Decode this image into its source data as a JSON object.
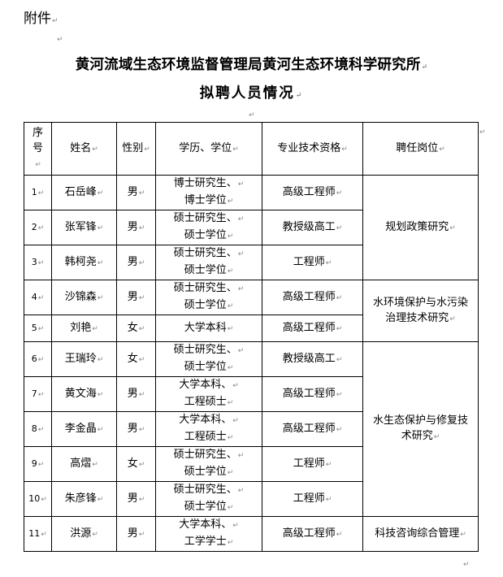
{
  "attachment_label": "附件",
  "title_line1": "黄河流域生态环境监督管理局黄河生态环境科学研究所",
  "title_line2": "拟聘人员情况",
  "table": {
    "headers": [
      "序号",
      "姓名",
      "性别",
      "学历、学位",
      "专业技术资格",
      "聘任岗位"
    ],
    "rows": [
      {
        "no": "1",
        "name": "石岳峰",
        "gender": "男",
        "edu1": "博士研究生、",
        "edu2": "博士学位",
        "title": "高级工程师"
      },
      {
        "no": "2",
        "name": "张军锋",
        "gender": "男",
        "edu1": "硕士研究生、",
        "edu2": "硕士学位",
        "title": "教授级高工"
      },
      {
        "no": "3",
        "name": "韩柯尧",
        "gender": "男",
        "edu1": "硕士研究生、",
        "edu2": "硕士学位",
        "title": "工程师"
      },
      {
        "no": "4",
        "name": "沙锦森",
        "gender": "男",
        "edu1": "硕士研究生、",
        "edu2": "硕士学位",
        "title": "高级工程师"
      },
      {
        "no": "5",
        "name": "刘艳",
        "gender": "女",
        "edu1": "大学本科",
        "edu2": "",
        "title": "高级工程师"
      },
      {
        "no": "6",
        "name": "王瑞玲",
        "gender": "女",
        "edu1": "硕士研究生、",
        "edu2": "硕士学位",
        "title": "教授级高工"
      },
      {
        "no": "7",
        "name": "黄文海",
        "gender": "男",
        "edu1": "大学本科、",
        "edu2": "工程硕士",
        "title": "高级工程师"
      },
      {
        "no": "8",
        "name": "李金晶",
        "gender": "男",
        "edu1": "大学本科、",
        "edu2": "工程硕士",
        "title": "高级工程师"
      },
      {
        "no": "9",
        "name": "高熠",
        "gender": "女",
        "edu1": "硕士研究生、",
        "edu2": "硕士学位",
        "title": "工程师"
      },
      {
        "no": "10",
        "name": "朱彦锋",
        "gender": "男",
        "edu1": "硕士研究生、",
        "edu2": "硕士学位",
        "title": "工程师"
      },
      {
        "no": "11",
        "name": "洪源",
        "gender": "男",
        "edu1": "大学本科、",
        "edu2": "工学学士",
        "title": "高级工程师"
      }
    ],
    "posts": [
      "规划政策研究",
      "水环境保护与水污染治理技术研究",
      "水生态保护与修复技术研究",
      "科技咨询综合管理"
    ]
  }
}
